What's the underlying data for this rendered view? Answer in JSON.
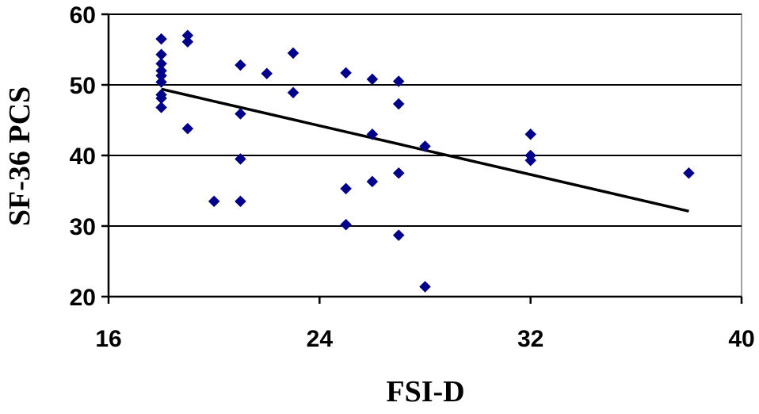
{
  "chart_data": {
    "type": "scatter",
    "title": "",
    "xlabel": "FSI-D",
    "ylabel": "SF-36 PCS",
    "xlim": [
      16,
      40
    ],
    "ylim": [
      20,
      60
    ],
    "xticks": [
      16,
      24,
      32,
      40
    ],
    "yticks": [
      20,
      30,
      40,
      50,
      60
    ],
    "xtick_labels": [
      "16",
      "24",
      "32",
      "40"
    ],
    "ytick_labels": [
      "20",
      "30",
      "40",
      "50",
      "60"
    ],
    "grid": "horizontal major lines",
    "legend": "none",
    "marker": "diamond",
    "marker_color": "#00008b",
    "line_color": "#000000",
    "series": [
      {
        "name": "",
        "points": [
          [
            18,
            56.5
          ],
          [
            18,
            54.3
          ],
          [
            18,
            53.0
          ],
          [
            18,
            52.0
          ],
          [
            18,
            51.3
          ],
          [
            18,
            50.4
          ],
          [
            18,
            48.6
          ],
          [
            18,
            48.1
          ],
          [
            18,
            46.8
          ],
          [
            19,
            57.0
          ],
          [
            19,
            56.1
          ],
          [
            19,
            43.8
          ],
          [
            20,
            33.5
          ],
          [
            21,
            52.8
          ],
          [
            21,
            45.9
          ],
          [
            21,
            39.5
          ],
          [
            21,
            33.5
          ],
          [
            22,
            51.6
          ],
          [
            23,
            54.5
          ],
          [
            23,
            48.9
          ],
          [
            25,
            51.7
          ],
          [
            25,
            35.3
          ],
          [
            25,
            30.2
          ],
          [
            26,
            50.8
          ],
          [
            26,
            43.0
          ],
          [
            26,
            36.3
          ],
          [
            27,
            50.5
          ],
          [
            27,
            47.3
          ],
          [
            27,
            37.5
          ],
          [
            27,
            28.7
          ],
          [
            28,
            41.3
          ],
          [
            28,
            21.4
          ],
          [
            32,
            43.0
          ],
          [
            32,
            40.0
          ],
          [
            32,
            39.3
          ],
          [
            38,
            37.5
          ]
        ]
      }
    ],
    "trendline": {
      "type": "linear",
      "x_start": 18,
      "y_start": 49.4,
      "x_end": 38,
      "y_end": 32.1
    }
  }
}
